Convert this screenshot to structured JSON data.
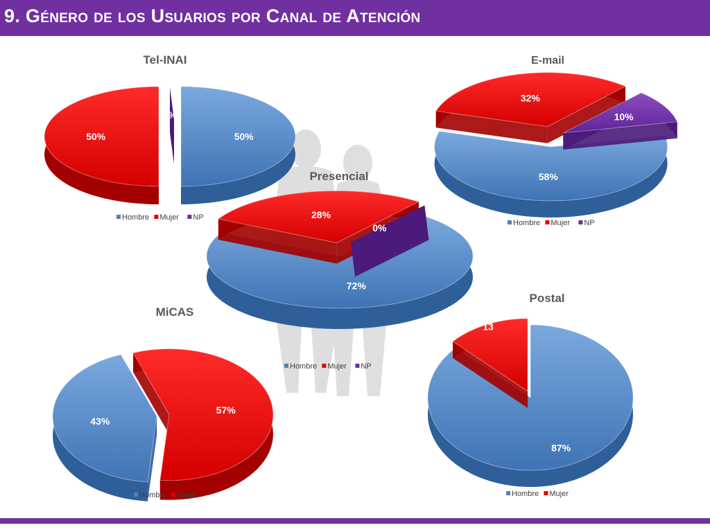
{
  "slide": {
    "title": "9. Género de los Usuarios por Canal de Atención"
  },
  "colors": {
    "title_bar": "#7030a0",
    "hombre": "#4f81bd",
    "mujer": "#e60000",
    "np": "#7030a0",
    "silhouette": "#d9d9d9"
  },
  "chart_data": [
    {
      "type": "pie",
      "title": "Tel-INAI",
      "categories": [
        "Hombre",
        "Mujer",
        "NP"
      ],
      "values": [
        50,
        50,
        0
      ],
      "labels": [
        "50%",
        "50%",
        "0%"
      ],
      "legend": [
        "Hombre",
        "Mujer",
        "NP"
      ],
      "legend_position": "bottom"
    },
    {
      "type": "pie",
      "title": "E-mail",
      "categories": [
        "Hombre",
        "Mujer",
        "NP"
      ],
      "values": [
        58,
        32,
        10
      ],
      "labels": [
        "58%",
        "32%",
        "10%"
      ],
      "legend": [
        "Hombre",
        "Mujer",
        "NP"
      ],
      "legend_position": "bottom"
    },
    {
      "type": "pie",
      "title": "Presencial",
      "categories": [
        "Hombre",
        "Mujer",
        "NP"
      ],
      "values": [
        72,
        28,
        0
      ],
      "labels": [
        "72%",
        "28%",
        "0%"
      ],
      "legend": [
        "Hombre",
        "Mujer",
        "NP"
      ],
      "legend_position": "bottom"
    },
    {
      "type": "pie",
      "title": "MiCAS",
      "categories": [
        "Hombre",
        "Mujer"
      ],
      "values": [
        43,
        57
      ],
      "labels": [
        "43%",
        "57%"
      ],
      "legend": [
        "Hombre",
        "Mujer"
      ],
      "legend_position": "bottom"
    },
    {
      "type": "pie",
      "title": "Postal",
      "categories": [
        "Hombre",
        "Mujer"
      ],
      "values": [
        87,
        13
      ],
      "labels": [
        "87%",
        "13"
      ],
      "legend": [
        "Hombre",
        "Mujer"
      ],
      "legend_position": "bottom"
    }
  ]
}
